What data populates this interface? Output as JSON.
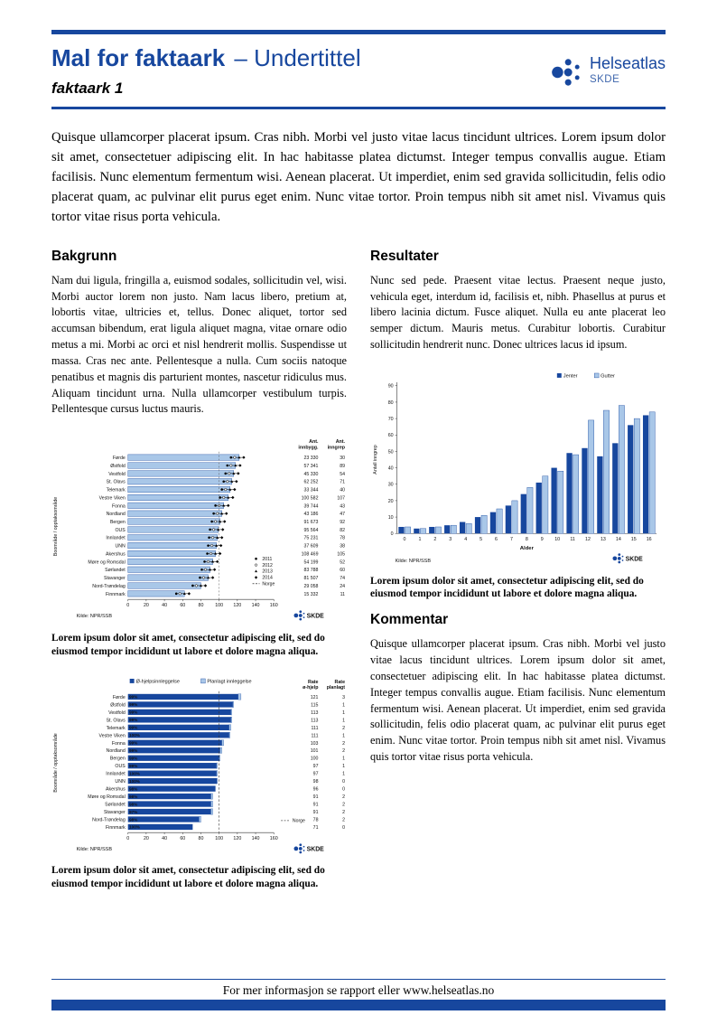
{
  "page": {
    "colors": {
      "accent": "#17479E",
      "bar_light": "#A9C7E8"
    },
    "footer": "For mer informasjon se rapport eller www.helseatlas.no"
  },
  "header": {
    "title_main": "Mal for faktaark",
    "title_sub": "– Undertittel",
    "subtitle": "faktaark 1",
    "logo": {
      "brand": "Helseatlas",
      "org": "SKDE"
    }
  },
  "intro": "Quisque ullamcorper placerat ipsum. Cras nibh. Morbi vel justo vitae lacus tincidunt ultrices. Lorem ipsum dolor sit amet, consectetuer adipiscing elit. In hac habitasse platea dictumst. Integer tempus convallis augue. Etiam facilisis. Nunc elementum fermentum wisi. Aenean placerat. Ut imperdiet, enim sed gravida sollicitudin, felis odio placerat quam, ac pulvinar elit purus eget enim. Nunc vitae tortor. Proin tempus nibh sit amet nisl. Vivamus quis tortor vitae risus porta vehicula.",
  "sections": {
    "bakgrunn": {
      "heading": "Bakgrunn",
      "body": "Nam dui ligula, fringilla a, euismod sodales, sollicitudin vel, wisi. Morbi auctor lorem non justo. Nam lacus libero, pretium at, lobortis vitae, ultricies et, tellus. Donec aliquet, tortor sed accumsan bibendum, erat ligula aliquet magna, vitae ornare odio metus a mi. Morbi ac orci et nisl hendrerit mollis. Suspendisse ut massa. Cras nec ante. Pellentesque a nulla. Cum sociis natoque penatibus et magnis dis parturient montes, nascetur ridiculus mus. Aliquam tincidunt urna. Nulla ullamcorper vestibulum turpis. Pellentesque cursus luctus mauris."
    },
    "resultater": {
      "heading": "Resultater",
      "body": "Nunc sed pede. Praesent vitae lectus. Praesent neque justo, vehicula eget, interdum id, facilisis et, nibh. Phasellus at purus et libero lacinia dictum. Fusce aliquet. Nulla eu ante placerat leo semper dictum. Mauris metus. Curabitur lobortis. Curabitur sollicitudin hendrerit nunc. Donec ultrices lacus id ipsum."
    },
    "kommentar": {
      "heading": "Kommentar",
      "body": "Quisque ullamcorper placerat ipsum. Cras nibh. Morbi vel justo vitae lacus tincidunt ultrices. Lorem ipsum dolor sit amet, consectetuer adipiscing elit. In hac habitasse platea dictumst. Integer tempus convallis augue. Etiam facilisis. Nunc elementum fermentum wisi. Aenean placerat. Ut imperdiet, enim sed gravida sollicitudin, felis odio placerat quam, ac pulvinar elit purus eget enim. Nunc vitae tortor. Proin tempus nibh sit amet nisl. Vivamus quis tortor vitae risus porta vehicula."
    }
  },
  "captions": {
    "chart1": "Lorem ipsum dolor sit amet, consectetur adipiscing elit, sed do eiusmod tempor incididunt ut labore et dolore magna aliqua.",
    "chart2": "Lorem ipsum dolor sit amet, consectetur adipiscing elit, sed do eiusmod tempor incididunt ut labore et dolore magna aliqua.",
    "chart3": "Lorem ipsum dolor sit amet, consectetur adipiscing elit, sed do eiusmod tempor incididunt ut labore et dolore magna aliqua."
  },
  "chart_data": [
    {
      "id": "rate-by-area",
      "type": "bar",
      "orientation": "horizontal",
      "ylabel": "Boområde / opptaksområde",
      "xlim": [
        0,
        160
      ],
      "xticks": [
        0,
        20,
        40,
        60,
        80,
        100,
        120,
        140,
        160
      ],
      "legend": [
        "2011",
        "2012",
        "2013",
        "2014",
        "Norge"
      ],
      "col1_header": [
        "Ant.",
        "innbygg."
      ],
      "col2_header": [
        "Ant.",
        "inngrep"
      ],
      "source": "Kilde: NPR/SSB",
      "norge_ref": 100,
      "categories": [
        "Førde",
        "Østfold",
        "Vestfold",
        "St. Olavs",
        "Telemark",
        "Vestre Viken",
        "Fonna",
        "Nordland",
        "Bergen",
        "OUS",
        "Innlandet",
        "UNN",
        "Akershus",
        "Møre og Romsdal",
        "Sørlandet",
        "Stavanger",
        "Nord-Trøndelag",
        "Finnmark"
      ],
      "rates": [
        122,
        118,
        116,
        114,
        112,
        110,
        105,
        103,
        101,
        99,
        98,
        97,
        96,
        93,
        90,
        88,
        80,
        62
      ],
      "innbyggere": [
        "23 330",
        "57 341",
        "45 330",
        "62 252",
        "33 344",
        "100 582",
        "39 744",
        "43 186",
        "91 673",
        "95 564",
        "75 231",
        "37 609",
        "108 469",
        "54 199",
        "83 788",
        "81 507",
        "29 058",
        "15 332"
      ],
      "inngrep": [
        30,
        89,
        54,
        71,
        40,
        107,
        43,
        47,
        92,
        82,
        78,
        38,
        105,
        52,
        60,
        74,
        24,
        11
      ]
    },
    {
      "id": "inngrep-etter-alder",
      "type": "bar",
      "orientation": "vertical",
      "xlabel": "Alder",
      "ylabel": "Antall inngrep",
      "ylim": [
        0,
        90
      ],
      "yticks": [
        0,
        10,
        20,
        30,
        40,
        50,
        60,
        70,
        80,
        90
      ],
      "source": "Kilde: NPR/SSB",
      "categories": [
        "0",
        "1",
        "2",
        "3",
        "4",
        "5",
        "6",
        "7",
        "8",
        "9",
        "10",
        "11",
        "12",
        "13",
        "14",
        "15",
        "16"
      ],
      "series": [
        {
          "name": "Jenter",
          "color": "#17479E",
          "values": [
            4,
            3,
            4,
            5,
            7,
            10,
            13,
            17,
            24,
            31,
            40,
            49,
            52,
            47,
            55,
            66,
            72
          ]
        },
        {
          "name": "Gutter",
          "color": "#A9C7E8",
          "values": [
            4,
            3,
            4,
            5,
            6,
            11,
            15,
            20,
            28,
            35,
            38,
            48,
            69,
            75,
            78,
            70,
            74
          ]
        }
      ]
    },
    {
      "id": "innleggelser-rate",
      "type": "stacked-bar",
      "orientation": "horizontal",
      "ylabel": "Boområde / opptaksområde",
      "xlim": [
        0,
        160
      ],
      "xticks": [
        0,
        20,
        40,
        60,
        80,
        100,
        120,
        140,
        160
      ],
      "series_labels": [
        "Ø-hjelpsinnleggelse",
        "Planlagt innleggelse"
      ],
      "col1_header": [
        "Rate",
        "ø-hjelp"
      ],
      "col2_header": [
        "Rate",
        "planlagt"
      ],
      "norge_label": "Norge",
      "norge_ref": 100,
      "source": "Kilde: NPR/SSB",
      "categories": [
        "Førde",
        "Østfold",
        "Vestfold",
        "St. Olavs",
        "Telemark",
        "Vestre Viken",
        "Fonna",
        "Nordland",
        "Bergen",
        "OUS",
        "Innlandet",
        "UNN",
        "Akershus",
        "Møre og Romsdal",
        "Sørlandet",
        "Stavanger",
        "Nord-Trøndelag",
        "Finnmark"
      ],
      "pct_labels": [
        "99%",
        "99%",
        "99%",
        "99%",
        "99%",
        "100%",
        "99%",
        "99%",
        "99%",
        "99%",
        "100%",
        "100%",
        "98%",
        "98%",
        "98%",
        "97%",
        "98%",
        "100%"
      ],
      "rate_ohjelp": [
        121,
        115,
        113,
        113,
        111,
        111,
        103,
        101,
        100,
        97,
        97,
        98,
        96,
        91,
        91,
        91,
        78,
        71
      ],
      "rate_planlagt": [
        3,
        1,
        1,
        1,
        2,
        1,
        2,
        2,
        1,
        1,
        1,
        0,
        0,
        2,
        2,
        2,
        2,
        0
      ]
    }
  ]
}
